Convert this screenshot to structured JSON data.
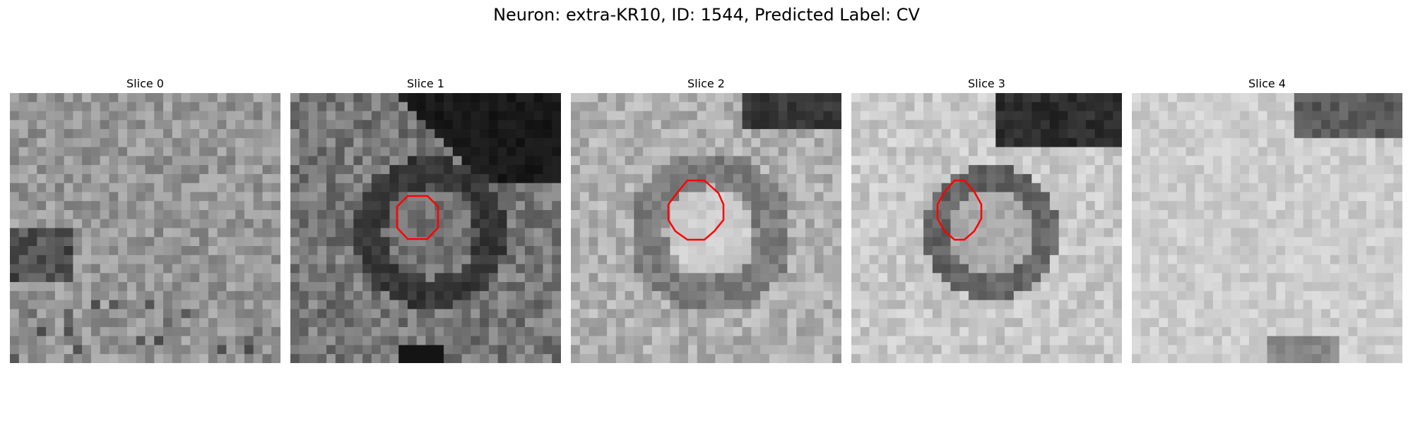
{
  "figure": {
    "title": "Neuron: extra-KR10, ID: 1544, Predicted Label: CV"
  },
  "slices": [
    {
      "title": "Slice 0",
      "has_contour": false
    },
    {
      "title": "Slice 1",
      "has_contour": true
    },
    {
      "title": "Slice 2",
      "has_contour": true
    },
    {
      "title": "Slice 3",
      "has_contour": true
    },
    {
      "title": "Slice 4",
      "has_contour": false
    }
  ],
  "colors": {
    "contour": "#ff0000",
    "colormap": "gray"
  }
}
